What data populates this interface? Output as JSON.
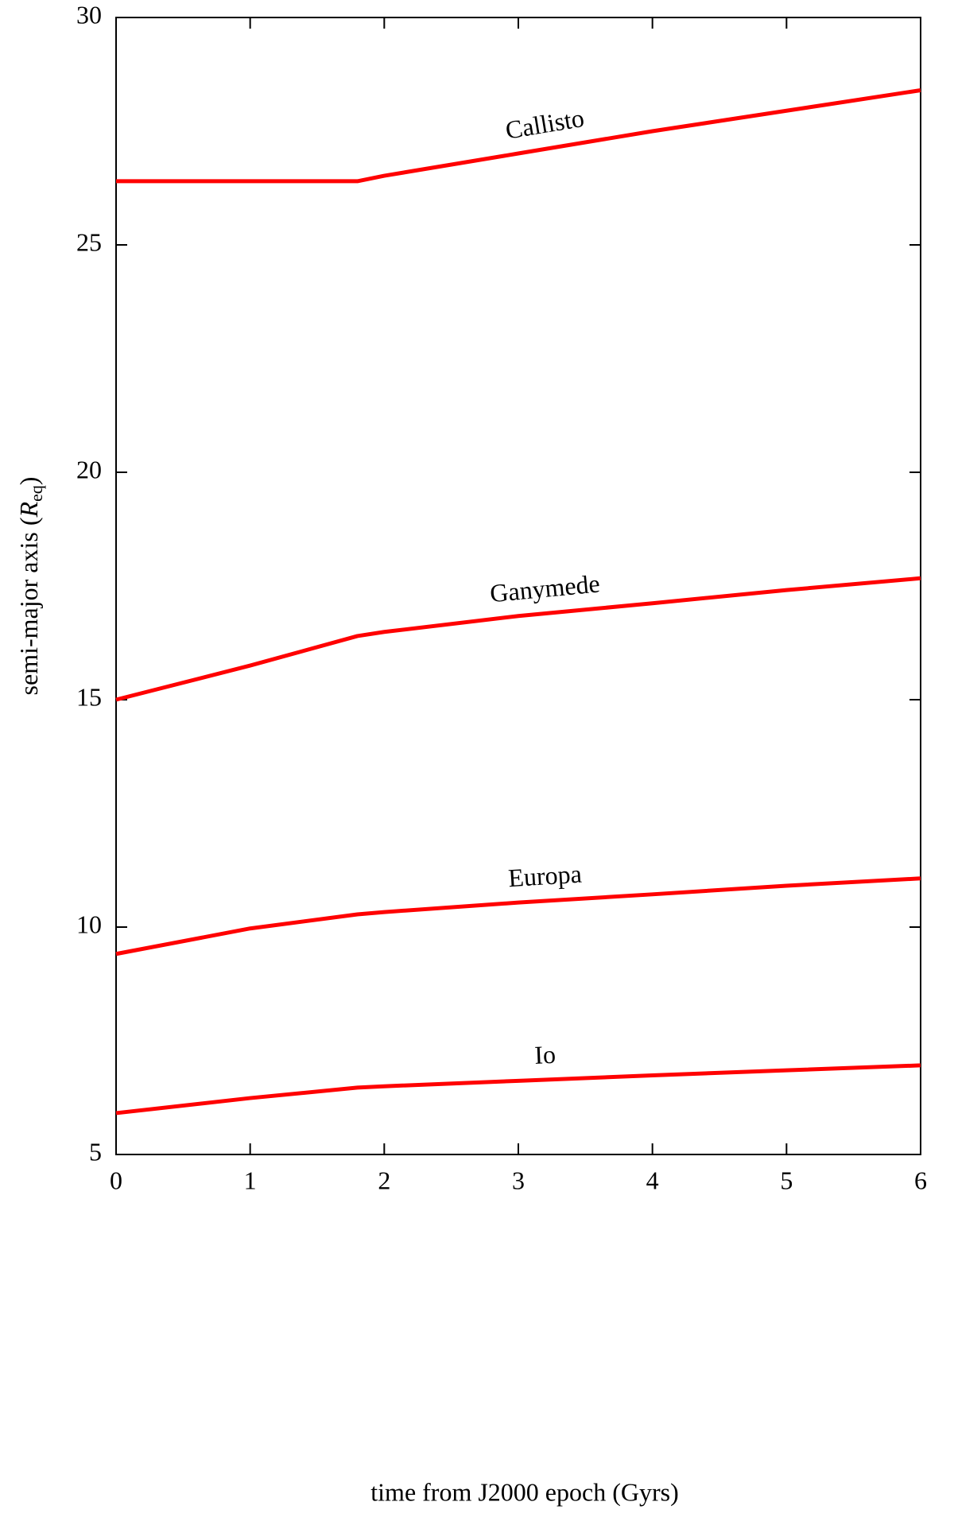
{
  "chart_data": {
    "type": "line",
    "x_label": "time from J2000 epoch (Gyrs)",
    "y_label": {
      "text": "semi-major axis (",
      "symbol": "R",
      "subscript": "eq",
      "close": ")"
    },
    "x": [
      0,
      1,
      1.8,
      2,
      3,
      4,
      5,
      6
    ],
    "series": [
      {
        "name": "Callisto",
        "color": "#ff0000",
        "values": [
          26.4,
          26.4,
          26.4,
          26.52,
          27.01,
          27.5,
          27.95,
          28.4
        ]
      },
      {
        "name": "Ganymede",
        "color": "#ff0000",
        "values": [
          15.0,
          15.75,
          16.4,
          16.49,
          16.84,
          17.12,
          17.41,
          17.67
        ]
      },
      {
        "name": "Europa",
        "color": "#ff0000",
        "values": [
          9.41,
          9.97,
          10.28,
          10.33,
          10.54,
          10.72,
          10.91,
          11.07
        ]
      },
      {
        "name": "Io",
        "color": "#ff0000",
        "values": [
          5.91,
          6.24,
          6.47,
          6.5,
          6.62,
          6.74,
          6.85,
          6.96
        ]
      }
    ],
    "xlim": [
      0,
      6
    ],
    "xticks": [
      0,
      1,
      2,
      3,
      4,
      5,
      6
    ],
    "ylim": [
      5,
      30
    ],
    "yticks": [
      5,
      10,
      15,
      20,
      25,
      30
    ],
    "grid": false
  }
}
